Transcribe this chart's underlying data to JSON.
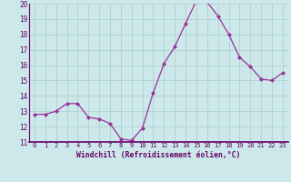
{
  "x": [
    0,
    1,
    2,
    3,
    4,
    5,
    6,
    7,
    8,
    9,
    10,
    11,
    12,
    13,
    14,
    15,
    16,
    17,
    18,
    19,
    20,
    21,
    22,
    23
  ],
  "y": [
    12.8,
    12.8,
    13.0,
    13.5,
    13.5,
    12.6,
    12.5,
    12.2,
    11.2,
    11.1,
    11.9,
    14.2,
    16.1,
    17.2,
    18.7,
    20.2,
    20.1,
    19.2,
    18.0,
    16.5,
    15.9,
    15.1,
    15.0,
    15.5
  ],
  "ylim": [
    11,
    20
  ],
  "yticks": [
    11,
    12,
    13,
    14,
    15,
    16,
    17,
    18,
    19,
    20
  ],
  "xticks": [
    0,
    1,
    2,
    3,
    4,
    5,
    6,
    7,
    8,
    9,
    10,
    11,
    12,
    13,
    14,
    15,
    16,
    17,
    18,
    19,
    20,
    21,
    22,
    23
  ],
  "xlabel": "Windchill (Refroidissement éolien,°C)",
  "line_color": "#993399",
  "marker": "D",
  "marker_size": 2.0,
  "bg_color": "#cce8ea",
  "grid_color": "#aacccc",
  "axis_color": "#660066",
  "label_color": "#660066",
  "spine_color": "#660066"
}
